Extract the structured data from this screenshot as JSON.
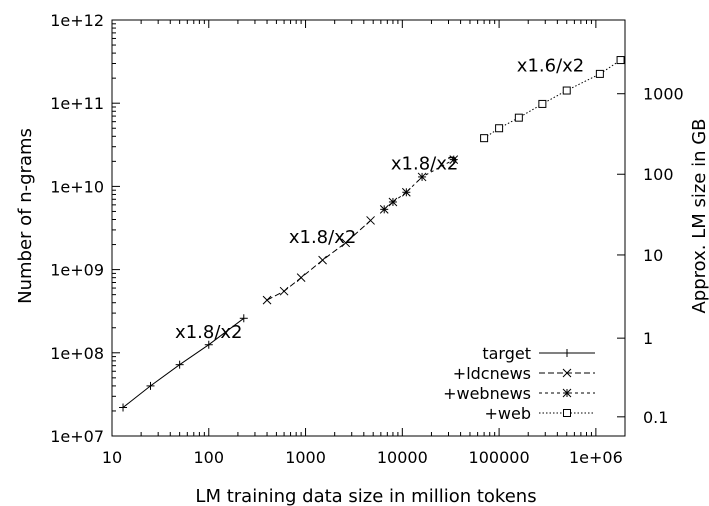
{
  "chart_data": {
    "type": "line",
    "xlabel": "LM training data size in million tokens",
    "ylabel": "Number of n-grams",
    "y2label": "Approx. LM size in GB",
    "x_scale": "log",
    "y_scale": "log",
    "xlim": [
      10,
      2000000
    ],
    "ylim": [
      10000000,
      1000000000000
    ],
    "x_ticks": [
      10,
      100,
      1000,
      10000,
      100000,
      1000000
    ],
    "x_tick_labels": [
      "10",
      "100",
      "1000",
      "10000",
      "100000",
      "1e+06"
    ],
    "y_ticks": [
      10000000,
      100000000,
      1000000000,
      10000000000,
      100000000000,
      1000000000000
    ],
    "y_tick_labels": [
      "1e+07",
      "1e+08",
      "1e+09",
      "1e+10",
      "1e+11",
      "1e+12"
    ],
    "y2_tick_labels": [
      "0.1",
      "1",
      "10",
      "100",
      "1000"
    ],
    "y2_ticks_ngram_equiv": [
      17000000,
      150000000,
      1500000000,
      14000000000,
      130000000000
    ],
    "grid": false,
    "legend_position": "bottom-right",
    "series": [
      {
        "name": "target",
        "style": "solid",
        "marker": "+",
        "x": [
          13,
          25,
          50,
          100,
          230
        ],
        "y": [
          22000000,
          40000000,
          72000000,
          125000000,
          260000000
        ]
      },
      {
        "name": "+ldcnews",
        "style": "dashed",
        "marker": "x",
        "x": [
          400,
          600,
          900,
          1500,
          2600,
          4700
        ],
        "y": [
          430000000,
          550000000,
          800000000,
          1300000000,
          2100000000,
          3900000000
        ]
      },
      {
        "name": "+webnews",
        "style": "dotted",
        "marker": "*",
        "x": [
          6500,
          8000,
          11000,
          16000,
          34000
        ],
        "y": [
          5300000000,
          6500000000,
          8500000000,
          13000000000,
          21000000000
        ]
      },
      {
        "name": "+web",
        "style": "fine-dotted",
        "marker": "square",
        "x": [
          70000,
          100000,
          160000,
          280000,
          500000,
          1100000,
          1800000
        ],
        "y": [
          38000000000,
          50000000000,
          67000000000,
          98000000000,
          142000000000,
          225000000000,
          330000000000
        ]
      }
    ],
    "annotations": [
      {
        "text": "x1.8/x2",
        "x": 100,
        "y": 150000000
      },
      {
        "text": "x1.8/x2",
        "x": 1500,
        "y": 2100000000
      },
      {
        "text": "x1.8/x2",
        "x": 17000,
        "y": 16000000000
      },
      {
        "text": "x1.6/x2",
        "x": 340000,
        "y": 240000000000
      }
    ]
  }
}
